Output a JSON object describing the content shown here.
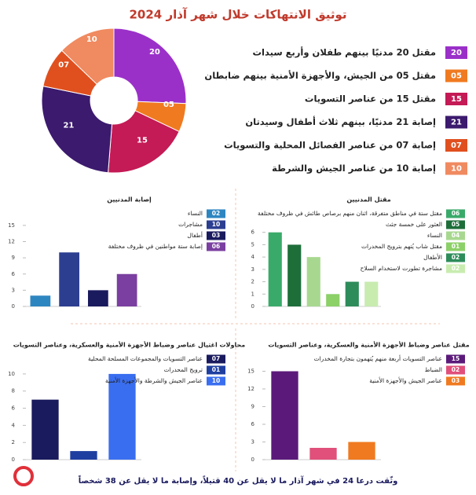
{
  "title": "توثيق الانتهاكات خلال شهر آذار 2024",
  "footer": "وثّقت درعا 24 في شهر آذار ما لا يقل عن 40 قتيلاً، وإصابة ما لا يقل عن 38 شخصاً",
  "chart_data": [
    {
      "type": "pie",
      "categories": [
        "مقتل 20 مدنيًا بينهم طفلان وأربع سيدات",
        "مقتل 05 من الجيش، والأجهزة الأمنية بينهم ضابطان",
        "مقتل 15 من عناصر التسويات",
        "إصابة 21 مدنيًا، بينهم ثلاث أطفال وسيدتان",
        "إصابة 07 من عناصر الفصائل المحلية والتسويات",
        "إصابة 10 من عناصر الجيش والشرطة"
      ],
      "values": [
        20,
        5,
        15,
        21,
        7,
        10
      ],
      "value_labels": [
        "20",
        "05",
        "15",
        "21",
        "07",
        "10"
      ],
      "colors": [
        "#9b30c9",
        "#f07a20",
        "#c41a55",
        "#3c1a6e",
        "#e0501f",
        "#f08a60"
      ]
    },
    {
      "type": "bar",
      "title": "مقتل المدنيين",
      "categories": [
        "مقتل ستة في مناطق متفرقة، اثنان منهم برصاص طائش في ظروف مختلفة",
        "العثور على خمسة جثث",
        "النساء",
        "مقتل شاب يُتهم بترويج المخدرات",
        "الأطفال",
        "مشاجرة تطورت لاستخدام السلاح"
      ],
      "values": [
        6,
        5,
        4,
        1,
        2,
        2
      ],
      "value_labels": [
        "06",
        "05",
        "04",
        "01",
        "02",
        "02"
      ],
      "colors": [
        "#3aaa6a",
        "#1e6e3a",
        "#a8d890",
        "#8cd068",
        "#2d8c5a",
        "#c8ecb0"
      ],
      "ylim": [
        0,
        7
      ],
      "yticks": [
        0,
        1,
        2,
        3,
        4,
        5,
        6
      ]
    },
    {
      "type": "bar",
      "title": "إصابة المدنيين",
      "categories": [
        "النساء",
        "مشاجرات",
        "أطفال",
        "إصابة ستة مواطنين في ظروف مختلفة"
      ],
      "values": [
        2,
        10,
        3,
        6
      ],
      "value_labels": [
        "02",
        "10",
        "03",
        "06"
      ],
      "colors": [
        "#2e86c1",
        "#2c3e90",
        "#1a1a5e",
        "#7a3fa0"
      ],
      "ylim": [
        0,
        16
      ],
      "yticks": [
        0,
        3,
        6,
        9,
        12,
        15
      ]
    },
    {
      "type": "bar",
      "title": "مقتل عناصر وضباط الأجهزة الأمنية والعسكرية، وعناصر التسويات",
      "categories": [
        "عناصر التسويات أربعة منهم يُتهمون بتجارة المخدرات",
        "الضباط",
        "عناصر الجيش والأجهزة الأمنية"
      ],
      "values": [
        15,
        2,
        3
      ],
      "value_labels": [
        "15",
        "02",
        "03"
      ],
      "colors": [
        "#5b1a7a",
        "#e0507a",
        "#f07a20"
      ],
      "ylim": [
        0,
        16
      ],
      "yticks": [
        0,
        3,
        6,
        9,
        12,
        15
      ]
    },
    {
      "type": "bar",
      "title": "محاولات اغتيال عناصر وضباط الأجهزة الأمنية والعسكرية، وعناصر التسويات",
      "categories": [
        "عناصر التسويات والمجموعات المسلحة المحلية",
        "ترويج المحدرات",
        "عناصر الجيش والشرطة والأجهزة الأمنية"
      ],
      "values": [
        7,
        1,
        10
      ],
      "value_labels": [
        "07",
        "01",
        "10"
      ],
      "colors": [
        "#1a1a5e",
        "#1f3fa0",
        "#3a6ef0"
      ],
      "ylim": [
        0,
        11
      ],
      "yticks": [
        0,
        2,
        4,
        6,
        8,
        10
      ]
    }
  ]
}
